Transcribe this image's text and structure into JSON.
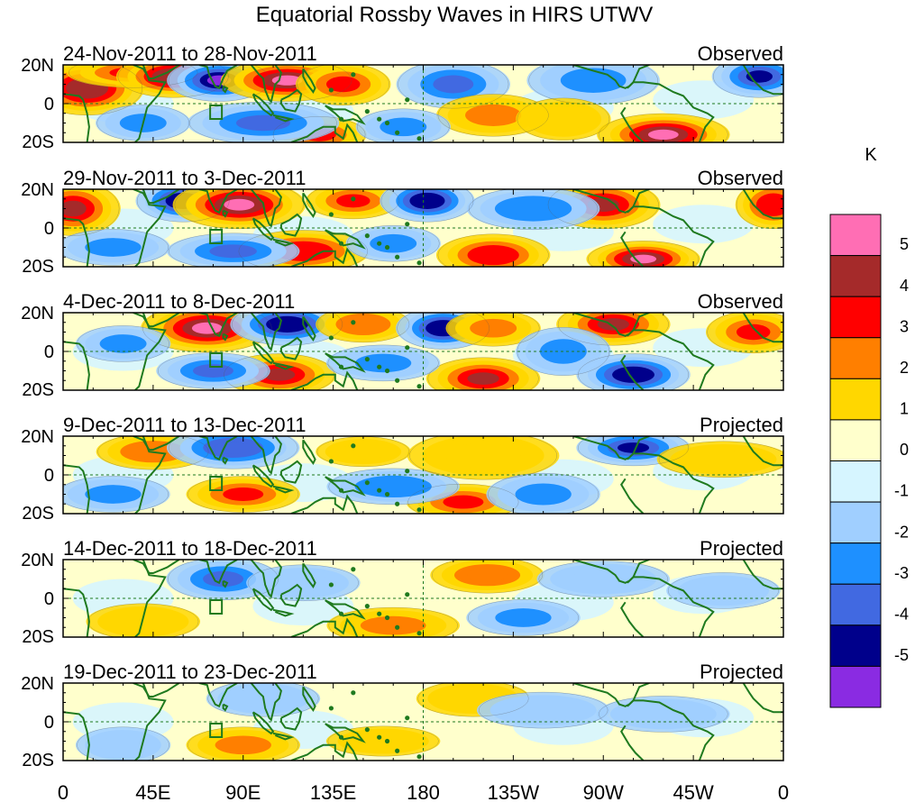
{
  "chart_data": {
    "type": "heatmap",
    "title": "Equatorial Rossby Waves in HIRS UTWV",
    "units": "K",
    "x_tick_labels": [
      "0",
      "45E",
      "90E",
      "135E",
      "180",
      "135W",
      "90W",
      "45W",
      "0"
    ],
    "x_range_deg_east": [
      0,
      360
    ],
    "y_tick_labels": [
      "20N",
      "0",
      "20S"
    ],
    "y_range_deg": [
      -20,
      20
    ],
    "colorbar": {
      "labels": [
        "5",
        "4",
        "3",
        "2",
        "1",
        "0",
        "-1",
        "-2",
        "-3",
        "-4",
        "-5"
      ],
      "colors": [
        "#ff6eb4",
        "#a52a2a",
        "#ff0000",
        "#ff7f00",
        "#ffd700",
        "#ffffcc",
        "#d6f5ff",
        "#a0cfff",
        "#1e90ff",
        "#4169e1",
        "#00008b",
        "#8a2be2"
      ]
    },
    "panels": [
      {
        "label": "24-Nov-2011 to 28-Nov-2011",
        "status": "Observed",
        "anomalies": [
          {
            "lon": 12,
            "lat": 8,
            "value": 4.5,
            "lon_width": 12,
            "lat_height": 9
          },
          {
            "lon": 35,
            "lat": 16,
            "value": 3.0,
            "lon_width": 14,
            "lat_height": 5
          },
          {
            "lon": 55,
            "lat": 14,
            "value": 4.5,
            "lon_width": 12,
            "lat_height": 7
          },
          {
            "lon": 78,
            "lat": 12,
            "value": -5.0,
            "lon_width": 11,
            "lat_height": 7
          },
          {
            "lon": 112,
            "lat": 12,
            "value": 5.0,
            "lon_width": 14,
            "lat_height": 7
          },
          {
            "lon": 140,
            "lat": 10,
            "value": 3.0,
            "lon_width": 10,
            "lat_height": 7
          },
          {
            "lon": 128,
            "lat": -16,
            "value": 3.0,
            "lon_width": 10,
            "lat_height": 6
          },
          {
            "lon": 195,
            "lat": 10,
            "value": -3.0,
            "lon_width": 12,
            "lat_height": 8
          },
          {
            "lon": 215,
            "lat": -6,
            "value": 2.0,
            "lon_width": 12,
            "lat_height": 7
          },
          {
            "lon": 300,
            "lat": -16,
            "value": 5.0,
            "lon_width": 14,
            "lat_height": 7
          },
          {
            "lon": 265,
            "lat": 12,
            "value": -2.0,
            "lon_width": 14,
            "lat_height": 8
          },
          {
            "lon": 348,
            "lat": 14,
            "value": -4.0,
            "lon_width": 10,
            "lat_height": 7
          },
          {
            "lon": 40,
            "lat": -10,
            "value": -2.0,
            "lon_width": 10,
            "lat_height": 6
          },
          {
            "lon": 100,
            "lat": -10,
            "value": -3.0,
            "lon_width": 16,
            "lat_height": 7
          },
          {
            "lon": 170,
            "lat": -12,
            "value": -2.0,
            "lon_width": 10,
            "lat_height": 6
          },
          {
            "lon": 250,
            "lat": -8,
            "value": 1.5,
            "lon_width": 10,
            "lat_height": 7
          }
        ]
      },
      {
        "label": "29-Nov-2011 to 3-Dec-2011",
        "status": "Observed",
        "anomalies": [
          {
            "lon": 5,
            "lat": 10,
            "value": 4.0,
            "lon_width": 10,
            "lat_height": 9
          },
          {
            "lon": 60,
            "lat": 14,
            "value": -4.5,
            "lon_width": 10,
            "lat_height": 7
          },
          {
            "lon": 88,
            "lat": 12,
            "value": 5.0,
            "lon_width": 14,
            "lat_height": 8
          },
          {
            "lon": 145,
            "lat": 14,
            "value": 3.0,
            "lon_width": 10,
            "lat_height": 6
          },
          {
            "lon": 182,
            "lat": 14,
            "value": -4.5,
            "lon_width": 10,
            "lat_height": 7
          },
          {
            "lon": 270,
            "lat": 12,
            "value": 4.0,
            "lon_width": 12,
            "lat_height": 8
          },
          {
            "lon": 355,
            "lat": 12,
            "value": 3.5,
            "lon_width": 8,
            "lat_height": 8
          },
          {
            "lon": 120,
            "lat": -12,
            "value": 3.5,
            "lon_width": 14,
            "lat_height": 7
          },
          {
            "lon": 215,
            "lat": -14,
            "value": 3.5,
            "lon_width": 12,
            "lat_height": 7
          },
          {
            "lon": 290,
            "lat": -16,
            "value": 5.0,
            "lon_width": 12,
            "lat_height": 6
          },
          {
            "lon": 85,
            "lat": -12,
            "value": -3.0,
            "lon_width": 14,
            "lat_height": 6
          },
          {
            "lon": 235,
            "lat": 10,
            "value": -2.5,
            "lon_width": 14,
            "lat_height": 7
          },
          {
            "lon": 25,
            "lat": -10,
            "value": -2.0,
            "lon_width": 12,
            "lat_height": 6
          },
          {
            "lon": 165,
            "lat": -8,
            "value": -2.0,
            "lon_width": 10,
            "lat_height": 6
          }
        ]
      },
      {
        "label": "4-Dec-2011 to 8-Dec-2011",
        "status": "Observed",
        "anomalies": [
          {
            "lon": 72,
            "lat": 12,
            "value": 5.0,
            "lon_width": 14,
            "lat_height": 8
          },
          {
            "lon": 112,
            "lat": 14,
            "value": -4.5,
            "lon_width": 12,
            "lat_height": 7
          },
          {
            "lon": 150,
            "lat": 14,
            "value": 2.5,
            "lon_width": 10,
            "lat_height": 6
          },
          {
            "lon": 190,
            "lat": 12,
            "value": -4.5,
            "lon_width": 10,
            "lat_height": 7
          },
          {
            "lon": 215,
            "lat": 12,
            "value": 2.0,
            "lon_width": 10,
            "lat_height": 6
          },
          {
            "lon": 275,
            "lat": 14,
            "value": 4.0,
            "lon_width": 12,
            "lat_height": 7
          },
          {
            "lon": 345,
            "lat": 10,
            "value": 3.0,
            "lon_width": 10,
            "lat_height": 7
          },
          {
            "lon": 108,
            "lat": -12,
            "value": 4.0,
            "lon_width": 12,
            "lat_height": 7
          },
          {
            "lon": 210,
            "lat": -14,
            "value": 4.0,
            "lon_width": 12,
            "lat_height": 7
          },
          {
            "lon": 285,
            "lat": -12,
            "value": -4.5,
            "lon_width": 12,
            "lat_height": 7
          },
          {
            "lon": 75,
            "lat": -10,
            "value": -3.0,
            "lon_width": 12,
            "lat_height": 6
          },
          {
            "lon": 250,
            "lat": 0,
            "value": -2.0,
            "lon_width": 10,
            "lat_height": 8
          },
          {
            "lon": 30,
            "lat": 4,
            "value": -2.0,
            "lon_width": 10,
            "lat_height": 6
          },
          {
            "lon": 160,
            "lat": -6,
            "value": -2.0,
            "lon_width": 12,
            "lat_height": 6
          }
        ]
      },
      {
        "label": "9-Dec-2011 to 13-Dec-2011",
        "status": "Projected",
        "anomalies": [
          {
            "lon": 45,
            "lat": 12,
            "value": 2.5,
            "lon_width": 12,
            "lat_height": 6
          },
          {
            "lon": 85,
            "lat": 14,
            "value": -3.5,
            "lon_width": 14,
            "lat_height": 7
          },
          {
            "lon": 285,
            "lat": 14,
            "value": -4.0,
            "lon_width": 12,
            "lat_height": 6
          },
          {
            "lon": 90,
            "lat": -10,
            "value": 3.0,
            "lon_width": 12,
            "lat_height": 6
          },
          {
            "lon": 200,
            "lat": -14,
            "value": 3.0,
            "lon_width": 12,
            "lat_height": 6
          },
          {
            "lon": 165,
            "lat": -6,
            "value": -2.5,
            "lon_width": 14,
            "lat_height": 6
          },
          {
            "lon": 210,
            "lat": 10,
            "value": 1.5,
            "lon_width": 16,
            "lat_height": 8
          },
          {
            "lon": 240,
            "lat": -10,
            "value": -2.0,
            "lon_width": 12,
            "lat_height": 7
          },
          {
            "lon": 330,
            "lat": 8,
            "value": 1.5,
            "lon_width": 14,
            "lat_height": 6
          },
          {
            "lon": 25,
            "lat": -10,
            "value": -2.0,
            "lon_width": 12,
            "lat_height": 6
          },
          {
            "lon": 150,
            "lat": 12,
            "value": 1.5,
            "lon_width": 10,
            "lat_height": 5
          }
        ]
      },
      {
        "label": "14-Dec-2011 to 18-Dec-2011",
        "status": "Projected",
        "anomalies": [
          {
            "lon": 80,
            "lat": 10,
            "value": -3.0,
            "lon_width": 12,
            "lat_height": 7
          },
          {
            "lon": 212,
            "lat": 12,
            "value": 2.5,
            "lon_width": 12,
            "lat_height": 6
          },
          {
            "lon": 165,
            "lat": -14,
            "value": 2.0,
            "lon_width": 14,
            "lat_height": 6
          },
          {
            "lon": 230,
            "lat": -10,
            "value": -2.0,
            "lon_width": 12,
            "lat_height": 6
          },
          {
            "lon": 270,
            "lat": 10,
            "value": -1.5,
            "lon_width": 14,
            "lat_height": 6
          },
          {
            "lon": 120,
            "lat": 8,
            "value": -1.5,
            "lon_width": 12,
            "lat_height": 6
          },
          {
            "lon": 330,
            "lat": 4,
            "value": -1.5,
            "lon_width": 12,
            "lat_height": 6
          },
          {
            "lon": 40,
            "lat": -12,
            "value": 1.5,
            "lon_width": 12,
            "lat_height": 6
          }
        ]
      },
      {
        "label": "19-Dec-2011 to 23-Dec-2011",
        "status": "Projected",
        "anomalies": [
          {
            "lon": 90,
            "lat": -12,
            "value": 2.0,
            "lon_width": 12,
            "lat_height": 6
          },
          {
            "lon": 205,
            "lat": 12,
            "value": 1.5,
            "lon_width": 12,
            "lat_height": 6
          },
          {
            "lon": 240,
            "lat": 6,
            "value": -1.5,
            "lon_width": 14,
            "lat_height": 6
          },
          {
            "lon": 100,
            "lat": 12,
            "value": -1.5,
            "lon_width": 12,
            "lat_height": 6
          },
          {
            "lon": 160,
            "lat": -10,
            "value": 1.5,
            "lon_width": 12,
            "lat_height": 5
          },
          {
            "lon": 300,
            "lat": 4,
            "value": -1.5,
            "lon_width": 14,
            "lat_height": 6
          },
          {
            "lon": 30,
            "lat": -12,
            "value": -1.5,
            "lon_width": 10,
            "lat_height": 6
          }
        ]
      }
    ]
  }
}
